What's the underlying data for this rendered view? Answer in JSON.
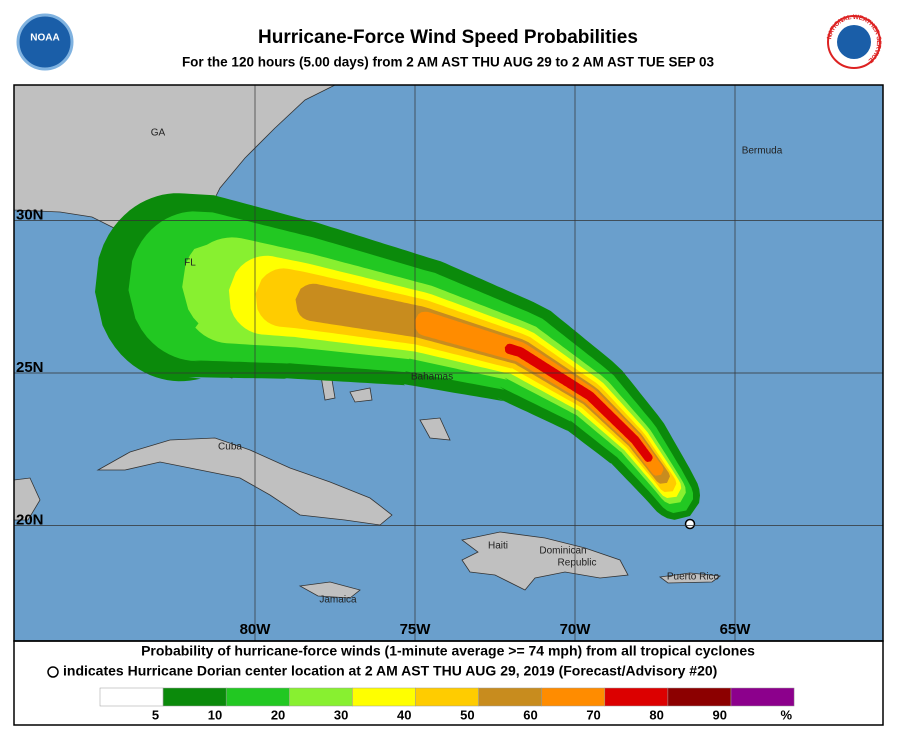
{
  "header": {
    "title": "Hurricane-Force Wind Speed Probabilities",
    "subtitle": "For the 120 hours (5.00 days) from 2 AM AST THU AUG 29 to 2 AM AST TUE SEP 03",
    "logos": [
      "NOAA",
      "NATIONAL WEATHER SERVICE"
    ]
  },
  "map": {
    "latitudes": [
      {
        "value": 30,
        "label": "30N"
      },
      {
        "value": 25,
        "label": "25N"
      },
      {
        "value": 20,
        "label": "20N"
      }
    ],
    "longitudes": [
      {
        "value": -80,
        "label": "80W"
      },
      {
        "value": -75,
        "label": "75W"
      },
      {
        "value": -70,
        "label": "70W"
      },
      {
        "value": -65,
        "label": "65W"
      }
    ],
    "places": [
      "GA",
      "FL",
      "Bermuda",
      "Bahamas",
      "Cuba",
      "Haiti",
      "Dominican",
      "Republic",
      "Jamaica",
      "Puerto Rico"
    ]
  },
  "footer": {
    "line1": "Probability of hurricane-force winds (1-minute average >= 74 mph) from all tropical cyclones",
    "line2": "indicates Hurricane Dorian center location at 2 AM AST THU AUG 29, 2019 (Forecast/Advisory #20)"
  },
  "legend": {
    "thresholds": [
      5,
      10,
      20,
      30,
      40,
      50,
      60,
      70,
      80,
      90
    ],
    "unit": "%",
    "colors": [
      "#ffffff",
      "#0b8a0b",
      "#22c822",
      "#88f030",
      "#ffff00",
      "#ffcc00",
      "#c88c1e",
      "#ff8c00",
      "#dc0000",
      "#8c0000",
      "#8c008c"
    ]
  }
}
